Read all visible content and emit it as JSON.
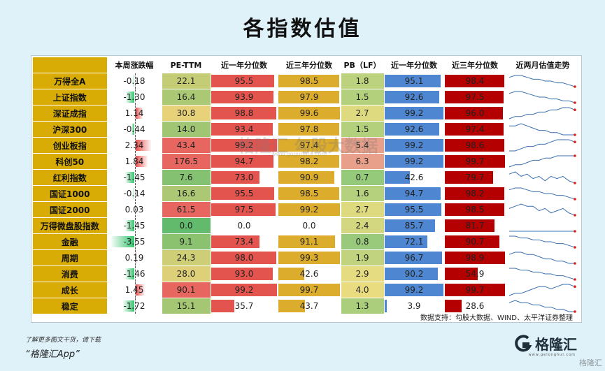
{
  "title": "各指数估值",
  "source": "数据支持：勾股大数据、WIND、太平洋证券整理",
  "footer": {
    "note": "了解更多图文干货，请下载",
    "app_name": "“格隆汇App”",
    "logo_text": "格隆汇",
    "logo_sub": "www.gelonghui.com",
    "corner_mark": "格隆汇"
  },
  "watermark": {
    "text": "格隆汇  勾股大数据",
    "url": "www.gogudata.com"
  },
  "colors": {
    "header_bg": "#d8ac05",
    "pe_high": "#e05a5a",
    "pe_low": "#4db86b",
    "pct_red": "#e3544f",
    "pct_gold": "#dcac2c",
    "pb_blue": "#4e86d1",
    "pb_red": "#b40000",
    "neg_green": "#36c36e",
    "pos_red": "#e6524f"
  },
  "chart_data": {
    "type": "table",
    "columns": [
      "",
      "本周涨跌幅",
      "PE-TTM",
      "近一年分位数",
      "近三年分位数",
      "PB（LF）",
      "近一年分位数",
      "近三年分位数",
      "近两月估值走势"
    ],
    "rows": [
      {
        "name": "万得全A",
        "week": "-0.18",
        "pe": "22.1",
        "pe1y": "95.5",
        "pe3y": "98.5",
        "pb": "1.8",
        "pb1y": "95.1",
        "pb3y": "98.4",
        "trend": [
          5,
          6,
          6,
          5,
          4,
          4,
          3,
          3,
          2,
          2,
          1,
          0
        ]
      },
      {
        "name": "上证指数",
        "week": "-1.30",
        "pe": "16.4",
        "pe1y": "93.9",
        "pe3y": "97.9",
        "pb": "1.5",
        "pb1y": "92.6",
        "pb3y": "97.5",
        "trend": [
          5,
          6,
          6,
          5,
          4,
          3,
          3,
          2,
          2,
          1,
          1,
          0
        ]
      },
      {
        "name": "深证成指",
        "week": "1.14",
        "pe": "30.8",
        "pe1y": "98.8",
        "pe3y": "99.6",
        "pb": "2.7",
        "pb1y": "99.2",
        "pb3y": "96.0",
        "trend": [
          1,
          2,
          2,
          3,
          3,
          4,
          4,
          5,
          5,
          6,
          6,
          5
        ]
      },
      {
        "name": "沪深300",
        "week": "-0.44",
        "pe": "14.0",
        "pe1y": "93.4",
        "pe3y": "97.8",
        "pb": "1.5",
        "pb1y": "92.6",
        "pb3y": "97.4",
        "trend": [
          5,
          5,
          6,
          5,
          4,
          3,
          3,
          2,
          2,
          1,
          1,
          1
        ]
      },
      {
        "name": "创业板指",
        "week": "2.34",
        "pe": "43.4",
        "pe1y": "99.2",
        "pe3y": "97.4",
        "pb": "5.4",
        "pb1y": "99.2",
        "pb3y": "98.6",
        "trend": [
          1,
          1,
          2,
          3,
          3,
          4,
          4,
          5,
          6,
          6,
          6,
          5
        ]
      },
      {
        "name": "科创50",
        "week": "1.84",
        "pe": "176.5",
        "pe1y": "94.7",
        "pe3y": "98.2",
        "pb": "6.3",
        "pb1y": "99.2",
        "pb3y": "99.7",
        "trend": [
          1,
          2,
          2,
          3,
          4,
          4,
          5,
          5,
          6,
          6,
          6,
          6
        ]
      },
      {
        "name": "红利指数",
        "week": "-1.45",
        "pe": "7.6",
        "pe1y": "73.0",
        "pe3y": "90.9",
        "pb": "0.7",
        "pb1y": "42.6",
        "pb3y": "79.7",
        "trend": [
          5,
          6,
          4,
          5,
          3,
          4,
          2,
          4,
          3,
          4,
          2,
          1
        ]
      },
      {
        "name": "国证1000",
        "week": "-0.14",
        "pe": "16.6",
        "pe1y": "95.5",
        "pe3y": "98.5",
        "pb": "1.6",
        "pb1y": "94.7",
        "pb3y": "98.2",
        "trend": [
          5,
          6,
          6,
          5,
          4,
          4,
          3,
          3,
          2,
          2,
          1,
          0
        ]
      },
      {
        "name": "国证2000",
        "week": "0.03",
        "pe": "61.5",
        "pe1y": "97.5",
        "pe3y": "99.2",
        "pb": "2.7",
        "pb1y": "95.5",
        "pb3y": "98.5",
        "trend": [
          4,
          5,
          6,
          5,
          5,
          3,
          4,
          2,
          3,
          4,
          2,
          1
        ]
      },
      {
        "name": "万得微盘股指数",
        "week": "-1.45",
        "pe": "0.0",
        "pe1y": "0.0",
        "pe3y": "0.0",
        "pb": "2.4",
        "pb1y": "85.7",
        "pb3y": "81.7",
        "trend": [
          3,
          3,
          3,
          3,
          3,
          3,
          3,
          3,
          3,
          3,
          3,
          3
        ]
      },
      {
        "name": "金融",
        "week": "-3.55",
        "pe": "9.1",
        "pe1y": "73.4",
        "pe3y": "91.1",
        "pb": "0.8",
        "pb1y": "72.1",
        "pb3y": "90.7",
        "trend": [
          6,
          6,
          5,
          5,
          4,
          4,
          3,
          3,
          2,
          2,
          1,
          0
        ]
      },
      {
        "name": "周期",
        "week": "0.19",
        "pe": "24.3",
        "pe1y": "98.0",
        "pe3y": "99.3",
        "pb": "1.9",
        "pb1y": "96.7",
        "pb3y": "98.9",
        "trend": [
          5,
          6,
          6,
          5,
          5,
          4,
          3,
          3,
          2,
          2,
          1,
          1
        ]
      },
      {
        "name": "消费",
        "week": "-1.46",
        "pe": "28.0",
        "pe1y": "93.0",
        "pe3y": "42.6",
        "pb": "2.9",
        "pb1y": "90.2",
        "pb3y": "54.9",
        "trend": [
          6,
          6,
          5,
          5,
          4,
          4,
          3,
          3,
          2,
          2,
          1,
          0
        ]
      },
      {
        "name": "成长",
        "week": "1.45",
        "pe": "90.1",
        "pe1y": "99.2",
        "pe3y": "99.7",
        "pb": "4.0",
        "pb1y": "99.2",
        "pb3y": "99.7",
        "trend": [
          1,
          2,
          2,
          3,
          4,
          5,
          5,
          4,
          5,
          6,
          6,
          5
        ]
      },
      {
        "name": "稳定",
        "week": "-1.72",
        "pe": "15.1",
        "pe1y": "35.7",
        "pe3y": "43.7",
        "pb": "1.3",
        "pb1y": "3.9",
        "pb3y": "28.6",
        "trend": [
          5,
          6,
          5,
          5,
          4,
          4,
          3,
          3,
          2,
          2,
          1,
          1
        ]
      }
    ]
  }
}
